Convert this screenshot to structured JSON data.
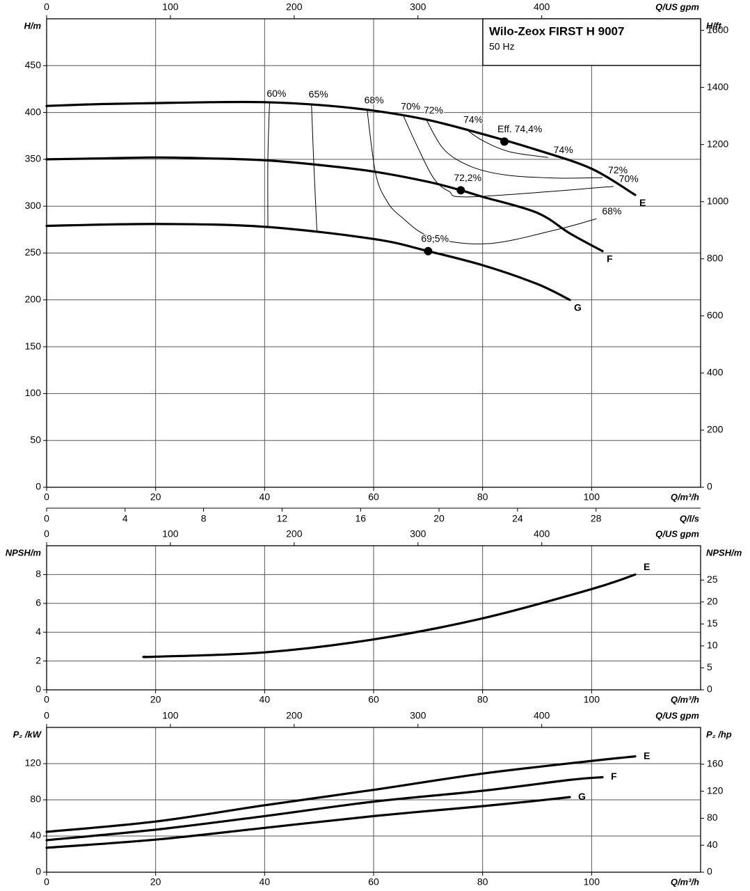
{
  "chart_data": [
    {
      "type": "line",
      "title": "Wilo-Zeox FIRST H 9007",
      "subtitle": "50 Hz",
      "grid": true,
      "xlabel": "Q/m³/h",
      "xlim": [
        0,
        120
      ],
      "xticks": [
        0,
        20,
        40,
        60,
        80,
        100
      ],
      "x2label": "Q/US gpm",
      "x2lim": [
        0,
        528.34
      ],
      "x2ticks": [
        0,
        100,
        200,
        300,
        400
      ],
      "x3label": "Q/l/s",
      "x3lim": [
        0,
        33.33
      ],
      "x3ticks": [
        0,
        4,
        8,
        12,
        16,
        20,
        24,
        28
      ],
      "ylabel": "H/m",
      "ylim": [
        0,
        500
      ],
      "yticks": [
        0,
        50,
        100,
        150,
        200,
        250,
        300,
        350,
        400,
        450
      ],
      "y2label": "H/ft",
      "y2lim": [
        0,
        1640.42
      ],
      "y2ticks": [
        0,
        200,
        400,
        600,
        800,
        1000,
        1200,
        1400,
        1600
      ],
      "series": [
        {
          "name": "E",
          "color": "#000000",
          "x": [
            0,
            10,
            20,
            30,
            40,
            50,
            60,
            70,
            80,
            90,
            100,
            108
          ],
          "values": [
            407,
            409,
            410,
            411,
            411,
            408,
            402,
            392,
            377,
            360,
            340,
            312
          ]
        },
        {
          "name": "F",
          "color": "#000000",
          "x": [
            0,
            10,
            20,
            30,
            40,
            50,
            60,
            70,
            76,
            80,
            90,
            96,
            102
          ],
          "values": [
            350,
            351,
            352,
            351,
            349,
            344,
            337,
            326,
            317,
            310,
            293,
            271,
            252
          ]
        },
        {
          "name": "G",
          "color": "#000000",
          "x": [
            0,
            20,
            40,
            60,
            70,
            80,
            90,
            96
          ],
          "values": [
            279,
            281,
            278,
            265,
            252,
            237,
            217,
            200
          ]
        }
      ],
      "efficiency_curves": [
        {
          "labels": [
            "60%"
          ],
          "x": [
            40.9,
            40.6,
            40.6
          ],
          "values": [
            410,
            350,
            278
          ]
        },
        {
          "labels": [
            "65%"
          ],
          "x": [
            48.6,
            49,
            49.6
          ],
          "values": [
            409,
            349,
            273
          ]
        },
        {
          "labels": [
            "68%",
            "68%"
          ],
          "x": [
            58.8,
            60.4,
            62.5,
            65,
            70.6,
            81,
            93.6,
            100.9
          ],
          "values": [
            403,
            334,
            305,
            289,
            267,
            260,
            275,
            286.6
          ]
        },
        {
          "labels": [
            "70%",
            "70%"
          ],
          "x": [
            65.5,
            68,
            71,
            73.8,
            78,
            104
          ],
          "values": [
            396,
            364,
            330,
            316,
            310,
            321
          ]
        },
        {
          "labels": [
            "72%",
            "72%"
          ],
          "x": [
            69.7,
            73,
            78,
            84.6,
            93.6,
            102
          ],
          "values": [
            392,
            360,
            342,
            333,
            330,
            330.5
          ]
        },
        {
          "labels": [
            "74%",
            "74%"
          ],
          "x": [
            77,
            80,
            85,
            92
          ],
          "values": [
            382,
            370,
            358,
            352
          ]
        }
      ],
      "points": [
        {
          "x": 84,
          "y": 369,
          "label": "Eff. 74,4%"
        },
        {
          "x": 76,
          "y": 317,
          "label": "72,2%"
        },
        {
          "x": 70,
          "y": 252,
          "label": "69,5%"
        }
      ]
    },
    {
      "type": "line",
      "grid": true,
      "xlabel": "Q/m³/h",
      "xlim": [
        0,
        120
      ],
      "xticks": [
        0,
        20,
        40,
        60,
        80,
        100
      ],
      "x2label": "Q/US gpm",
      "x2lim": [
        0,
        528.34
      ],
      "x2ticks": [
        0,
        100,
        200,
        300,
        400
      ],
      "ylabel": "NPSH/m",
      "ylim": [
        0,
        10
      ],
      "yticks": [
        0,
        2,
        4,
        6,
        8
      ],
      "y2label": "NPSH/m",
      "y2lim": [
        0,
        32.81
      ],
      "y2ticks": [
        0,
        5,
        10,
        15,
        20,
        25
      ],
      "series": [
        {
          "name": "E",
          "color": "#000000",
          "x": [
            18,
            20,
            40,
            60,
            80,
            100,
            108
          ],
          "values": [
            2.3,
            2.3,
            2.6,
            3.5,
            4.96,
            6.99,
            8.0
          ]
        }
      ]
    },
    {
      "type": "line",
      "grid": true,
      "xlabel": "Q/m³/h",
      "xlim": [
        0,
        120
      ],
      "xticks": [
        0,
        20,
        40,
        60,
        80,
        100
      ],
      "x2label": "Q/US gpm",
      "x2lim": [
        0,
        528.34
      ],
      "x2ticks": [
        0,
        100,
        200,
        300,
        400
      ],
      "ylabel": "P₂ /kW",
      "ylim": [
        0,
        160
      ],
      "yticks": [
        0,
        40,
        80,
        120
      ],
      "y2label": "P₂ /hp",
      "y2lim": [
        0,
        214.57
      ],
      "y2ticks": [
        0,
        40,
        80,
        120,
        160
      ],
      "series": [
        {
          "name": "E",
          "color": "#000000",
          "x": [
            0,
            20,
            40,
            60,
            80,
            100,
            108
          ],
          "values": [
            44.6,
            56,
            74,
            91,
            109,
            123,
            128
          ]
        },
        {
          "name": "F",
          "color": "#000000",
          "x": [
            0,
            20,
            40,
            60,
            80,
            96,
            102
          ],
          "values": [
            35.4,
            47,
            62,
            78,
            90,
            102,
            105
          ]
        },
        {
          "name": "G",
          "color": "#000000",
          "x": [
            0,
            20,
            40,
            60,
            80,
            90,
            96
          ],
          "values": [
            27,
            36,
            49,
            62,
            73,
            79,
            83
          ]
        }
      ]
    }
  ]
}
